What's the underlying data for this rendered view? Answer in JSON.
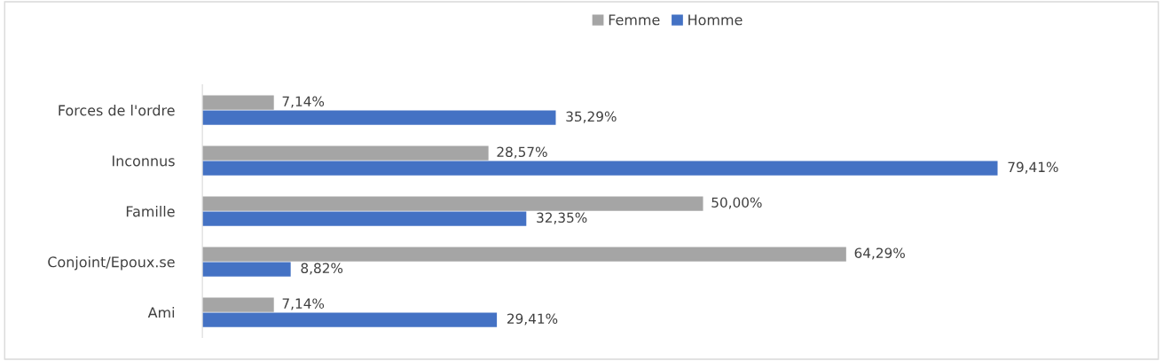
{
  "chart_data": {
    "type": "bar",
    "orientation": "horizontal",
    "legend": "top",
    "categories": [
      "Forces de l'ordre",
      "Inconnus",
      "Famille",
      "Conjoint/Epoux.se",
      "Ami"
    ],
    "series": [
      {
        "name": "Femme",
        "color": "#a5a5a5",
        "values": [
          7.14,
          28.57,
          50.0,
          64.29,
          7.14
        ],
        "value_labels": [
          "7,14%",
          "28,57%",
          "50,00%",
          "64,29%",
          "7,14%"
        ]
      },
      {
        "name": "Homme",
        "color": "#4472c4",
        "values": [
          35.29,
          79.41,
          32.35,
          8.82,
          29.41
        ],
        "value_labels": [
          "35,29%",
          "79,41%",
          "32,35%",
          "8,82%",
          "29,41%"
        ]
      }
    ]
  }
}
